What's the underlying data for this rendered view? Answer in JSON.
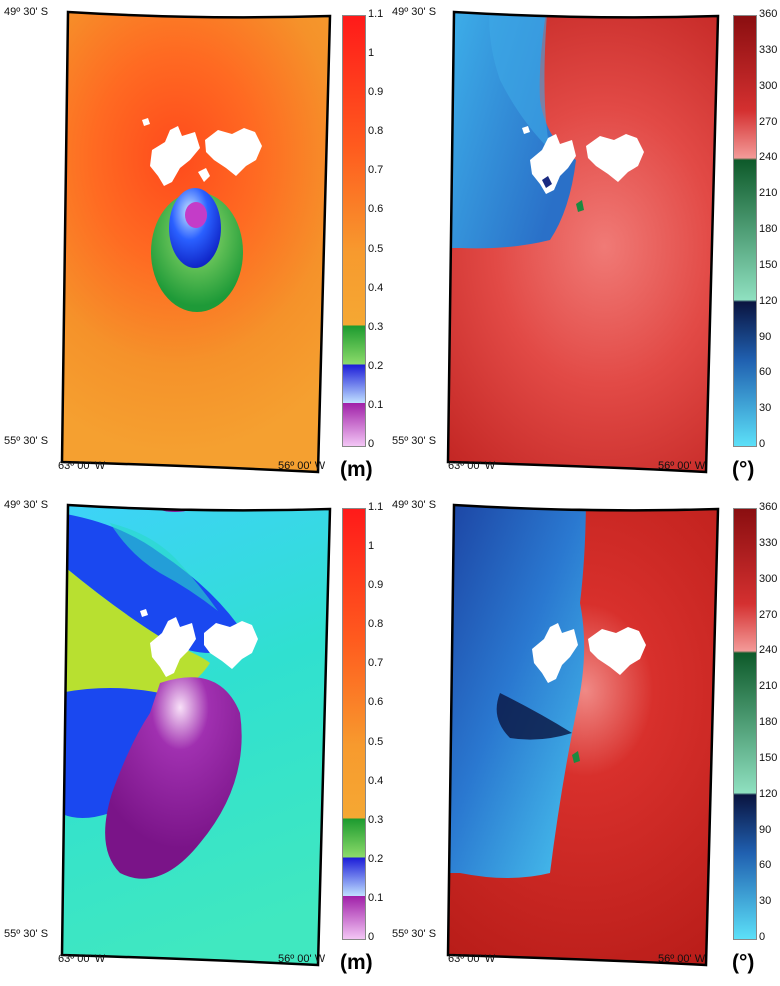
{
  "panels": [
    {
      "id": "tl",
      "lat_top": "49º 30' S",
      "lat_bottom": "55º 30' S",
      "lon_left": "63º 00' W",
      "lon_right": "56º 00' W",
      "colorbar_ticks": [
        "1.1",
        "1",
        "0.9",
        "0.8",
        "0.7",
        "0.6",
        "0.5",
        "0.4",
        "0.3",
        "0.2",
        "0.1",
        "0"
      ],
      "unit": "(m)",
      "colors": {
        "background": "#f0982a",
        "upper": "#ff5a1e",
        "green": "#2fae40",
        "blue": "#1a3ee8",
        "magenta": "#c030c8"
      }
    },
    {
      "id": "tr",
      "lat_top": "49º 30' S",
      "lat_bottom": "55º 30' S",
      "lon_left": "63º 00' W",
      "lon_right": "56º 00' W",
      "colorbar_ticks": [
        "360",
        "330",
        "300",
        "270",
        "240",
        "210",
        "180",
        "150",
        "120",
        "90",
        "60",
        "30",
        "0"
      ],
      "unit": "(°)",
      "colors": {
        "red": "#c8231e",
        "light_red": "#e2504e",
        "blue": "#3a8fd8",
        "cyan": "#49c6ef"
      }
    },
    {
      "id": "bl",
      "lat_top": "49º 30' S",
      "lat_bottom": "55º 30' S",
      "lon_left": "63º 00' W",
      "lon_right": "56º 00' W",
      "colorbar_ticks": [
        "1.1",
        "1",
        "0.9",
        "0.8",
        "0.7",
        "0.6",
        "0.5",
        "0.4",
        "0.3",
        "0.2",
        "0.1",
        "0"
      ],
      "unit": "(m)",
      "colors": {
        "cyan": "#38e0d8",
        "blue": "#1540f0",
        "yellow_green": "#b8e030",
        "purple": "#8a1a9a"
      }
    },
    {
      "id": "br",
      "lat_top": "49º 30' S",
      "lat_bottom": "55º 30' S",
      "lon_left": "63º 00' W",
      "lon_right": "56º 00' W",
      "colorbar_ticks": [
        "360",
        "330",
        "300",
        "270",
        "240",
        "210",
        "180",
        "150",
        "120",
        "90",
        "60",
        "30",
        "0"
      ],
      "unit": "(°)",
      "colors": {
        "red": "#c8231e",
        "dark_blue": "#1a3c9c",
        "cyan": "#49c6ef",
        "navy": "#0a1440"
      }
    }
  ]
}
